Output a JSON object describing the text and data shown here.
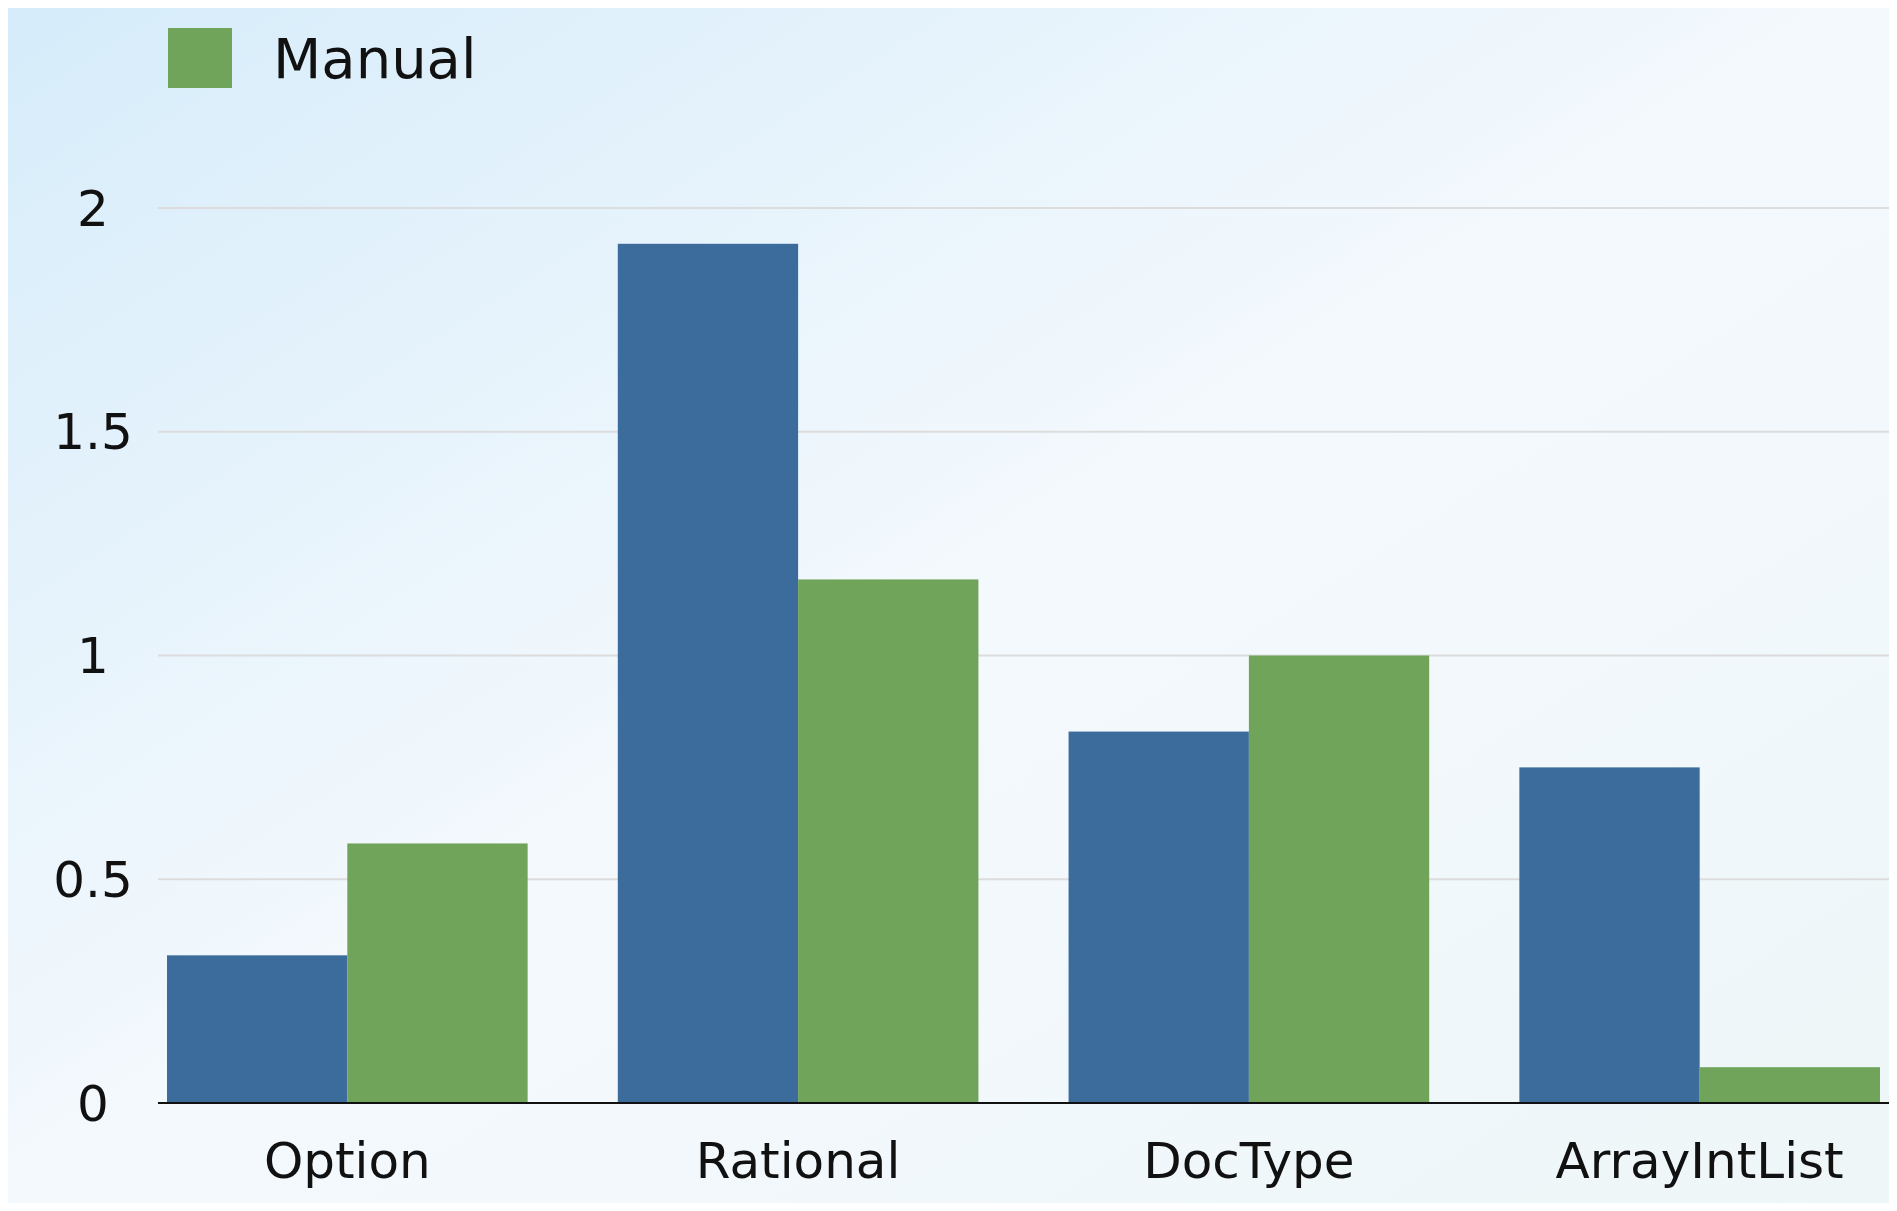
{
  "chart_data": {
    "type": "bar",
    "categories": [
      "Option",
      "Rational",
      "DocType",
      "ArrayIntList"
    ],
    "series": [
      {
        "color": "#3c6c9c",
        "values": [
          0.33,
          1.92,
          0.83,
          0.75
        ]
      },
      {
        "name": "Manual",
        "color": "#6fa45a",
        "values": [
          0.58,
          1.17,
          1.0,
          0.08
        ]
      }
    ],
    "ylim": [
      0,
      2
    ],
    "yticks": [
      0,
      {
        "value": 0.5,
        "label": "0.5"
      },
      1,
      {
        "value": 1.5,
        "label": "1.5"
      },
      2
    ],
    "grid": "y",
    "legend": "top left"
  }
}
